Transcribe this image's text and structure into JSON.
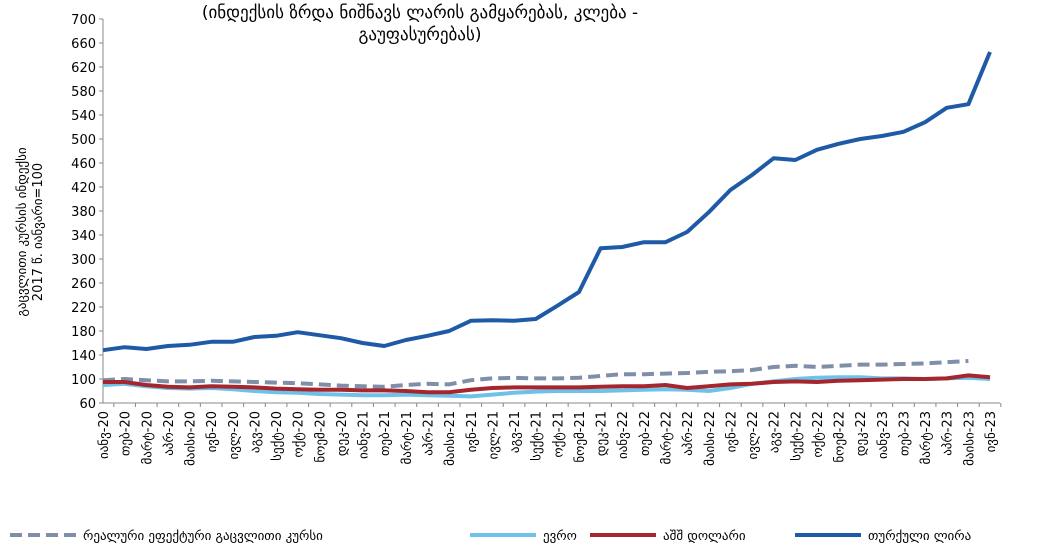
{
  "chart_data": {
    "type": "line",
    "title": [
      "(ინდექსის ზრდა ნიშნავს ლარის გამყარებას, კლება -",
      "გაუფასურებას)"
    ],
    "y_label": [
      "გაცვლითი კურსის ინდექსი",
      "2017 წ. იანვარი=100"
    ],
    "categories": [
      "იანვ-20",
      "თებ-20",
      "მარტ-20",
      "აპრ-20",
      "მაისი-20",
      "ივნ-20",
      "ივლ-20",
      "აგვ-20",
      "სექტ-20",
      "ოქტ-20",
      "ნოემ-20",
      "დეკ-20",
      "იანვ-21",
      "თებ-21",
      "მარტ-21",
      "აპრ-21",
      "მაისი-21",
      "ივნ-21",
      "ივლ-21",
      "აგვ-21",
      "სექტ-21",
      "ოქტ-21",
      "ნოემ-21",
      "დეკ-21",
      "იანვ-22",
      "თებ-22",
      "მარტ-22",
      "აპრ-22",
      "მაისი-22",
      "ივნ-22",
      "ივლ-22",
      "აგვ-22",
      "სექტ-22",
      "ოქტ-22",
      "ნოემ-22",
      "დეკ-22",
      "იანვ-23",
      "თებ-23",
      "მარტ-23",
      "აპრ-23",
      "მაისი-23",
      "ივნ-23"
    ],
    "series": [
      {
        "name": "რეალური ეფექტური გაცვლითი კურსი",
        "color": "#7f8fa9",
        "dashed": true,
        "values": [
          98,
          100,
          98,
          96,
          96,
          97,
          96,
          95,
          94,
          93,
          91,
          89,
          88,
          87,
          90,
          92,
          91,
          98,
          101,
          102,
          101,
          101,
          102,
          105,
          108,
          108,
          109,
          110,
          112,
          113,
          115,
          120,
          122,
          120,
          122,
          124,
          124,
          125,
          126,
          128,
          130,
          null
        ]
      },
      {
        "name": "ევრო",
        "color": "#6ec1e8",
        "values": [
          90,
          92,
          88,
          85,
          84,
          85,
          83,
          80,
          78,
          77,
          75,
          74,
          73,
          73,
          74,
          73,
          72,
          71,
          74,
          77,
          79,
          80,
          80,
          80,
          81,
          82,
          83,
          82,
          80,
          85,
          92,
          96,
          100,
          102,
          103,
          103,
          101,
          101,
          100,
          101,
          102,
          100
        ]
      },
      {
        "name": "აშშ დოლარი",
        "color": "#a5262c",
        "values": [
          95,
          95,
          90,
          87,
          86,
          88,
          87,
          86,
          84,
          83,
          82,
          82,
          81,
          81,
          80,
          78,
          78,
          82,
          85,
          86,
          86,
          86,
          86,
          87,
          88,
          88,
          90,
          85,
          88,
          91,
          92,
          95,
          96,
          95,
          97,
          98,
          99,
          100,
          100,
          101,
          106,
          103
        ]
      },
      {
        "name": "თურქული ლირა",
        "color": "#1f5aa6",
        "values": [
          148,
          153,
          150,
          155,
          157,
          162,
          162,
          170,
          172,
          178,
          173,
          168,
          160,
          155,
          165,
          172,
          180,
          197,
          198,
          197,
          200,
          222,
          245,
          318,
          320,
          328,
          328,
          345,
          378,
          415,
          440,
          468,
          465,
          482,
          492,
          500,
          505,
          512,
          528,
          552,
          558,
          645
        ]
      }
    ],
    "ylim": [
      60,
      700
    ],
    "yticks": [
      60,
      100,
      140,
      180,
      220,
      260,
      300,
      340,
      380,
      420,
      460,
      500,
      540,
      580,
      620,
      660,
      700
    ],
    "grid": false,
    "legend": "bottom"
  }
}
